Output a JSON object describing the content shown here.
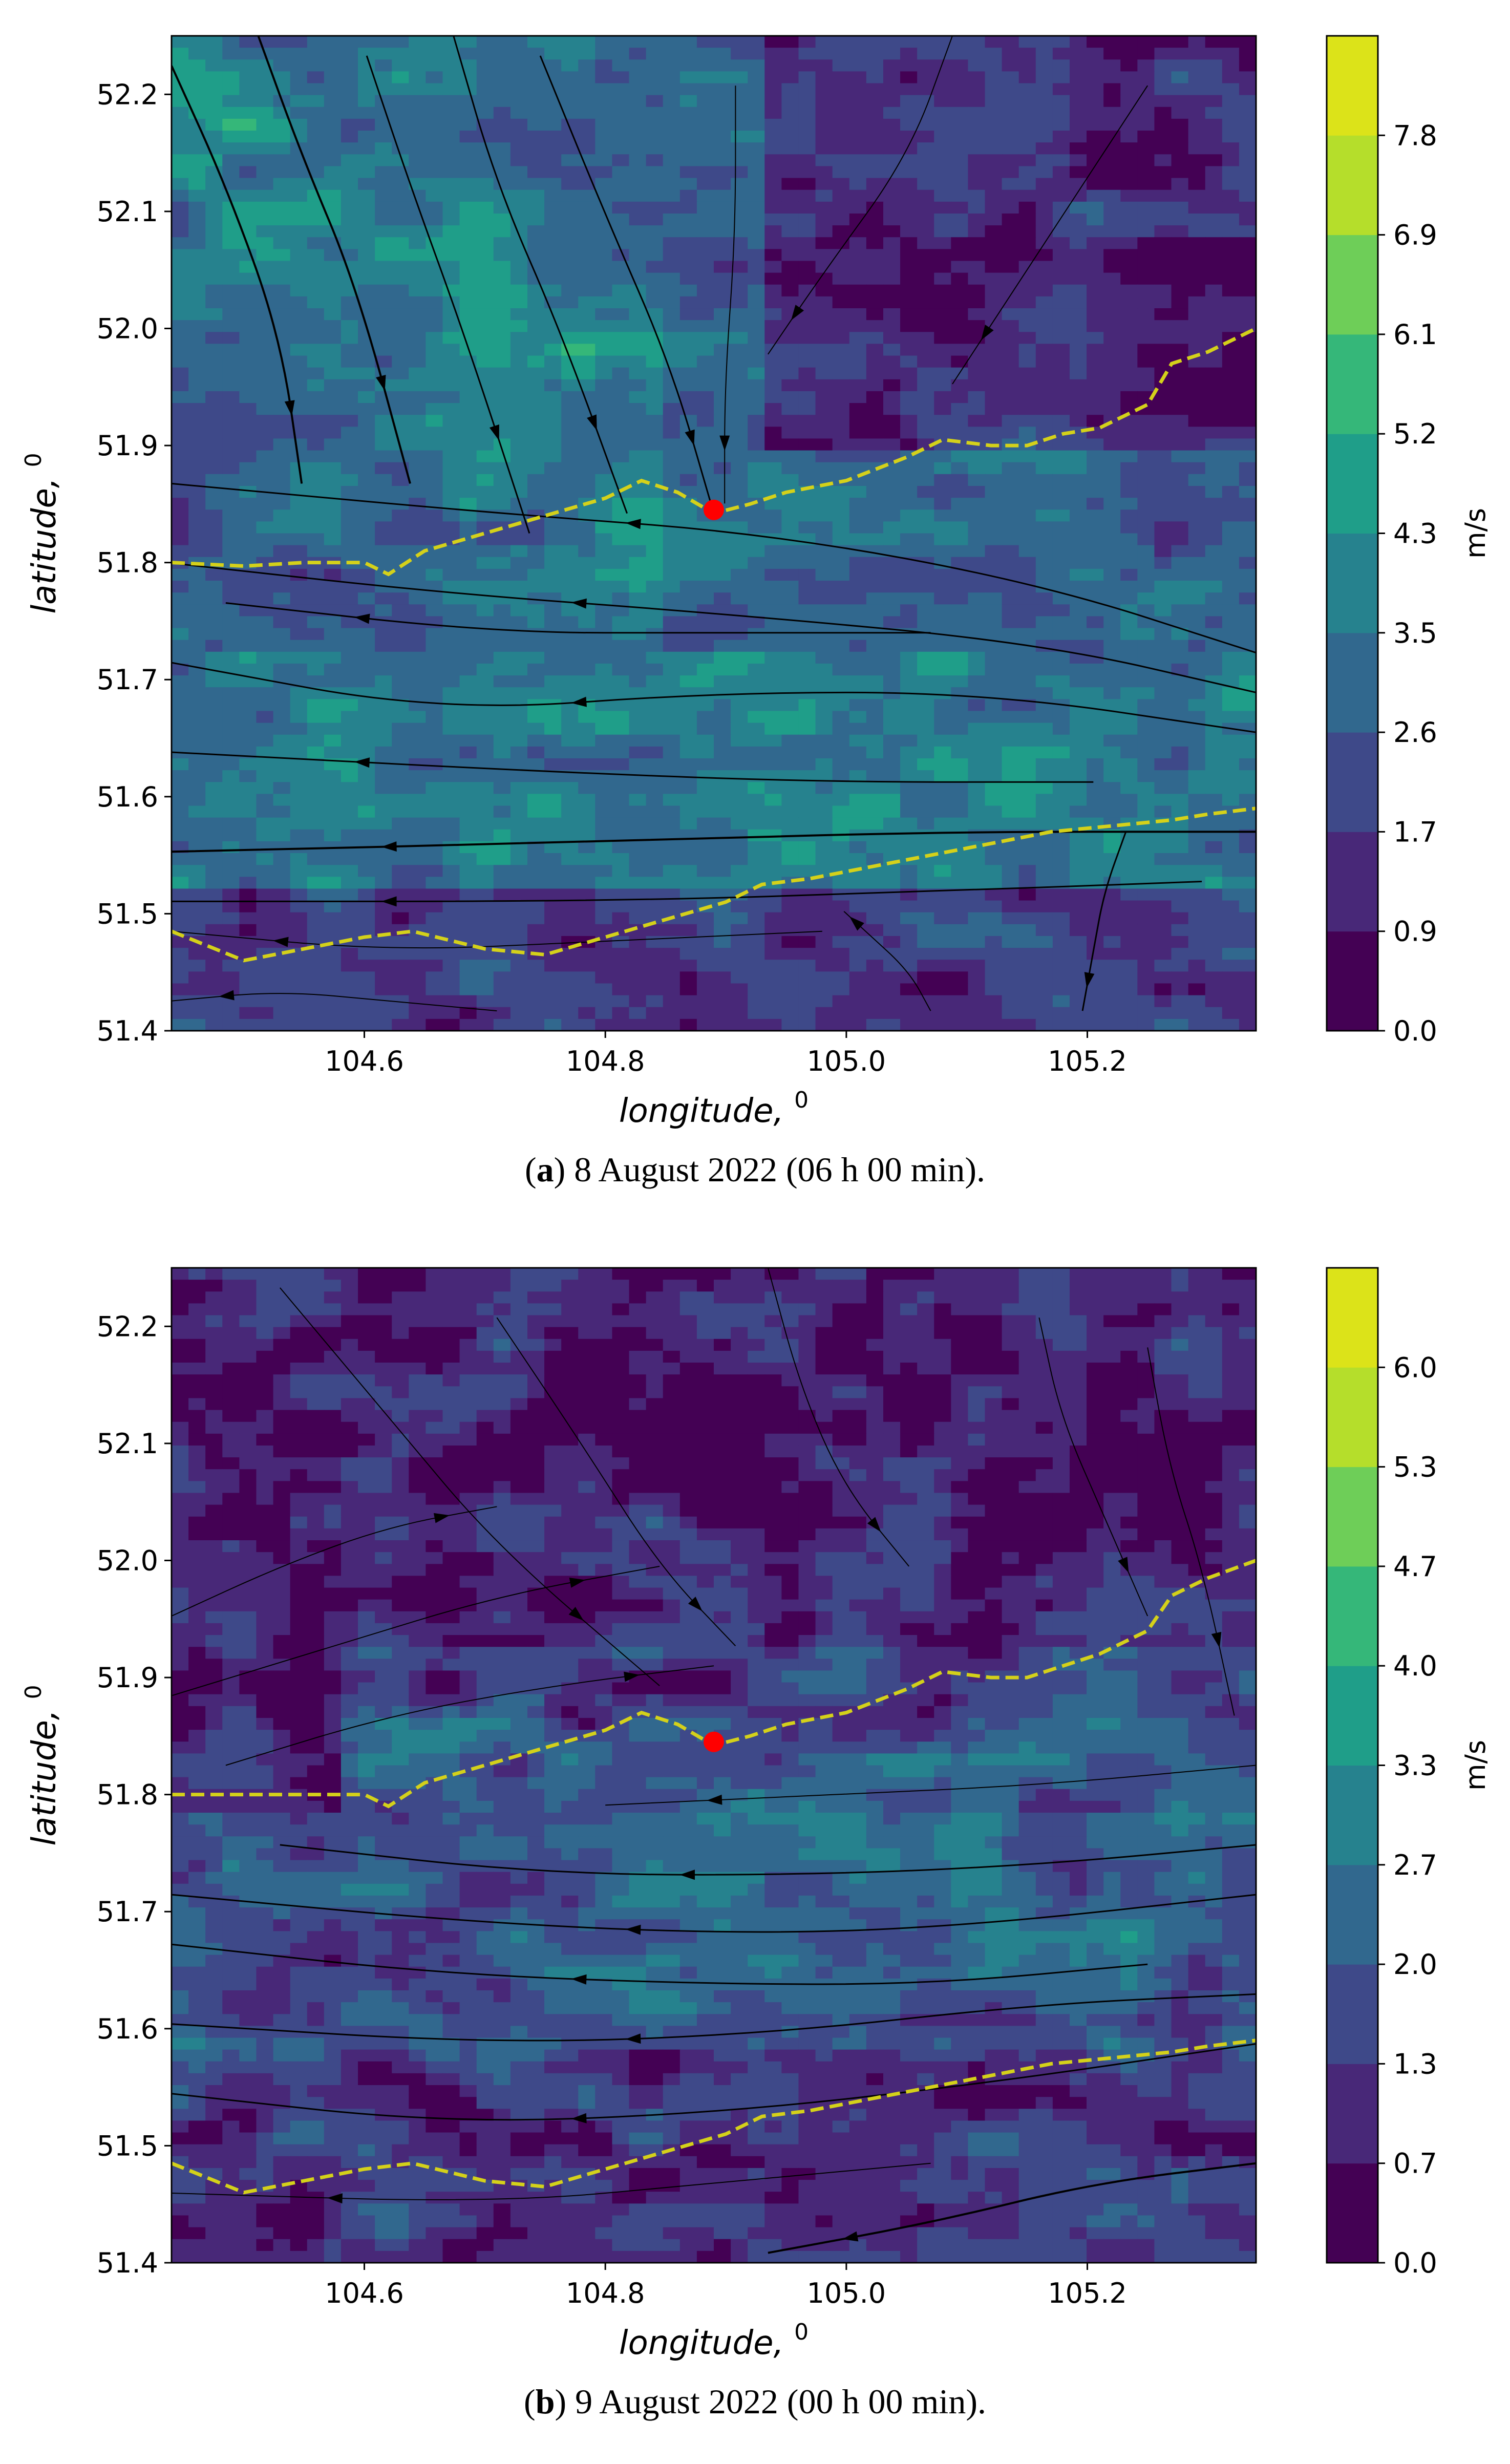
{
  "chart_data": [
    {
      "type": "heatmap",
      "subtype": "filled-contour with streamlines",
      "panel_label": "a",
      "caption": "8 August 2022 (06 h 00 min).",
      "xlabel": "longitude, ",
      "xlabel_sup": "0",
      "ylabel": "latitude, ",
      "ylabel_sup": "0",
      "xlim": [
        104.44,
        105.34
      ],
      "ylim": [
        51.4,
        52.25
      ],
      "xticks": [
        104.6,
        104.8,
        105.0,
        105.2
      ],
      "xtick_labels": [
        "104.6",
        "104.8",
        "105.0",
        "105.2"
      ],
      "yticks": [
        51.4,
        51.5,
        51.6,
        51.7,
        51.8,
        51.9,
        52.0,
        52.1,
        52.2
      ],
      "ytick_labels": [
        "51.4",
        "51.5",
        "51.6",
        "51.7",
        "51.8",
        "51.9",
        "52.0",
        "52.1",
        "52.2"
      ],
      "colorbar_label": "m/s",
      "colorbar_levels": [
        0.0,
        0.9,
        1.7,
        2.6,
        3.5,
        4.3,
        5.2,
        6.1,
        6.9,
        7.8
      ],
      "colorbar_labels": [
        "0.0",
        "0.9",
        "1.7",
        "2.6",
        "3.5",
        "4.3",
        "5.2",
        "6.1",
        "6.9",
        "7.8"
      ],
      "colors": [
        "#440154",
        "#482878",
        "#3e4989",
        "#31688e",
        "#26828e",
        "#1f9e89",
        "#35b779",
        "#6ece58",
        "#b5de2b",
        "#dce319"
      ],
      "point": {
        "lon": 104.89,
        "lat": 51.845,
        "color": "#ff0000"
      },
      "dashed_lines": [
        {
          "name": "upper-boundary",
          "color": "#d4d11a",
          "points": [
            [
              104.44,
              51.8
            ],
            [
              104.5,
              51.797
            ],
            [
              104.55,
              51.8
            ],
            [
              104.6,
              51.8
            ],
            [
              104.62,
              51.79
            ],
            [
              104.65,
              51.81
            ],
            [
              104.7,
              51.825
            ],
            [
              104.75,
              51.84
            ],
            [
              104.8,
              51.855
            ],
            [
              104.83,
              51.87
            ],
            [
              104.86,
              51.86
            ],
            [
              104.89,
              51.842
            ],
            [
              104.92,
              51.85
            ],
            [
              104.95,
              51.86
            ],
            [
              105.0,
              51.87
            ],
            [
              105.05,
              51.89
            ],
            [
              105.08,
              51.905
            ],
            [
              105.12,
              51.9
            ],
            [
              105.15,
              51.9
            ],
            [
              105.18,
              51.91
            ],
            [
              105.21,
              51.915
            ],
            [
              105.25,
              51.935
            ],
            [
              105.27,
              51.97
            ],
            [
              105.3,
              51.98
            ],
            [
              105.34,
              52.0
            ]
          ]
        },
        {
          "name": "lower-boundary",
          "color": "#d4d11a",
          "points": [
            [
              104.44,
              51.485
            ],
            [
              104.5,
              51.46
            ],
            [
              104.55,
              51.47
            ],
            [
              104.6,
              51.48
            ],
            [
              104.64,
              51.485
            ],
            [
              104.7,
              51.47
            ],
            [
              104.75,
              51.465
            ],
            [
              104.8,
              51.48
            ],
            [
              104.85,
              51.495
            ],
            [
              104.9,
              51.51
            ],
            [
              104.93,
              51.525
            ],
            [
              104.97,
              51.53
            ],
            [
              105.02,
              51.54
            ],
            [
              105.07,
              51.55
            ],
            [
              105.12,
              51.56
            ],
            [
              105.17,
              51.57
            ],
            [
              105.22,
              51.575
            ],
            [
              105.27,
              51.58
            ],
            [
              105.3,
              51.585
            ],
            [
              105.34,
              51.59
            ]
          ]
        }
      ]
    },
    {
      "type": "heatmap",
      "subtype": "filled-contour with streamlines",
      "panel_label": "b",
      "caption": "9 August 2022 (00 h 00 min).",
      "xlabel": "longitude, ",
      "xlabel_sup": "0",
      "ylabel": "latitude, ",
      "ylabel_sup": "0",
      "xlim": [
        104.44,
        105.34
      ],
      "ylim": [
        51.4,
        52.25
      ],
      "xticks": [
        104.6,
        104.8,
        105.0,
        105.2
      ],
      "xtick_labels": [
        "104.6",
        "104.8",
        "105.0",
        "105.2"
      ],
      "yticks": [
        51.4,
        51.5,
        51.6,
        51.7,
        51.8,
        51.9,
        52.0,
        52.1,
        52.2
      ],
      "ytick_labels": [
        "51.4",
        "51.5",
        "51.6",
        "51.7",
        "51.8",
        "51.9",
        "52.0",
        "52.1",
        "52.2"
      ],
      "colorbar_label": "m/s",
      "colorbar_levels": [
        0.0,
        0.7,
        1.3,
        2.0,
        2.7,
        3.3,
        4.0,
        4.7,
        5.3,
        6.0
      ],
      "colorbar_labels": [
        "0.0",
        "0.7",
        "1.3",
        "2.0",
        "2.7",
        "3.3",
        "4.0",
        "4.7",
        "5.3",
        "6.0"
      ],
      "colors": [
        "#440154",
        "#482878",
        "#3e4989",
        "#31688e",
        "#26828e",
        "#1f9e89",
        "#35b779",
        "#6ece58",
        "#b5de2b",
        "#dce319"
      ],
      "point": {
        "lon": 104.89,
        "lat": 51.845,
        "color": "#ff0000"
      },
      "dashed_lines": [
        {
          "name": "upper-boundary",
          "color": "#d4d11a",
          "points": [
            [
              104.44,
              51.8
            ],
            [
              104.5,
              51.8
            ],
            [
              104.55,
              51.8
            ],
            [
              104.6,
              51.8
            ],
            [
              104.62,
              51.79
            ],
            [
              104.65,
              51.81
            ],
            [
              104.7,
              51.825
            ],
            [
              104.75,
              51.84
            ],
            [
              104.8,
              51.855
            ],
            [
              104.83,
              51.87
            ],
            [
              104.86,
              51.86
            ],
            [
              104.89,
              51.842
            ],
            [
              104.92,
              51.85
            ],
            [
              104.95,
              51.86
            ],
            [
              105.0,
              51.87
            ],
            [
              105.05,
              51.89
            ],
            [
              105.08,
              51.905
            ],
            [
              105.12,
              51.9
            ],
            [
              105.15,
              51.9
            ],
            [
              105.18,
              51.91
            ],
            [
              105.21,
              51.92
            ],
            [
              105.25,
              51.94
            ],
            [
              105.27,
              51.97
            ],
            [
              105.3,
              51.985
            ],
            [
              105.34,
              52.0
            ]
          ]
        },
        {
          "name": "lower-boundary",
          "color": "#d4d11a",
          "points": [
            [
              104.44,
              51.485
            ],
            [
              104.5,
              51.46
            ],
            [
              104.55,
              51.47
            ],
            [
              104.6,
              51.48
            ],
            [
              104.64,
              51.485
            ],
            [
              104.7,
              51.47
            ],
            [
              104.75,
              51.465
            ],
            [
              104.8,
              51.48
            ],
            [
              104.85,
              51.495
            ],
            [
              104.9,
              51.51
            ],
            [
              104.93,
              51.525
            ],
            [
              104.97,
              51.53
            ],
            [
              105.02,
              51.54
            ],
            [
              105.07,
              51.55
            ],
            [
              105.12,
              51.56
            ],
            [
              105.17,
              51.57
            ],
            [
              105.22,
              51.575
            ],
            [
              105.27,
              51.58
            ],
            [
              105.3,
              51.585
            ],
            [
              105.34,
              51.59
            ]
          ]
        }
      ]
    }
  ]
}
